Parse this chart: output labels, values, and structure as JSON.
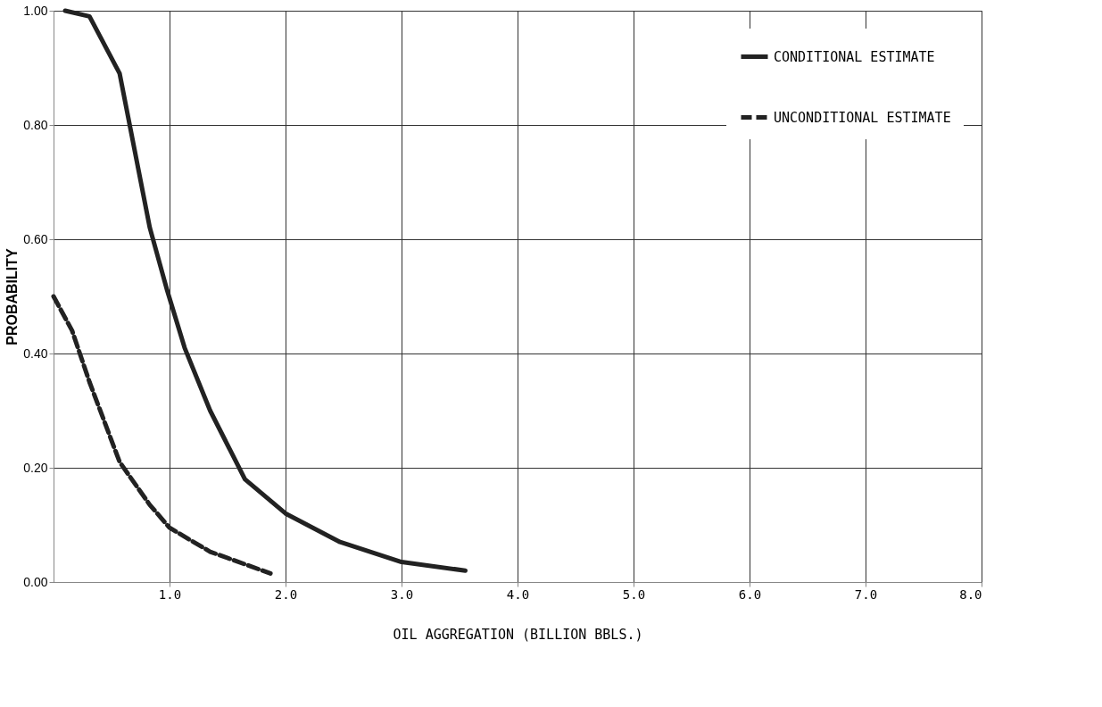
{
  "chart_data": {
    "type": "line",
    "xlabel": "OIL AGGREGATION (BILLION BBLS.)",
    "ylabel": "PROBABILITY",
    "xlim": [
      0,
      8
    ],
    "ylim": [
      0,
      1
    ],
    "xticks": [
      {
        "value": 1,
        "label": "1.0"
      },
      {
        "value": 2,
        "label": "2.0"
      },
      {
        "value": 3,
        "label": "3.0"
      },
      {
        "value": 4,
        "label": "4.0"
      },
      {
        "value": 5,
        "label": "5.0"
      },
      {
        "value": 6,
        "label": "6.0"
      },
      {
        "value": 7,
        "label": "7.0"
      },
      {
        "value": 8,
        "label": "8.0"
      }
    ],
    "yticks": [
      {
        "value": 0,
        "label": "0.00"
      },
      {
        "value": 0.2,
        "label": "0.20"
      },
      {
        "value": 0.4,
        "label": "0.40"
      },
      {
        "value": 0.6,
        "label": "0.60"
      },
      {
        "value": 0.8,
        "label": "0.80"
      },
      {
        "value": 1,
        "label": "1.00"
      }
    ],
    "grid": true,
    "legend": "top right",
    "marker": "none",
    "series": [
      {
        "name": "CONDITIONAL ESTIMATE",
        "color": "#222222",
        "line_style": "solid",
        "x": [
          0.1,
          0.31,
          0.57,
          0.83,
          0.98,
          1.13,
          1.35,
          1.65,
          2.0,
          2.47,
          3.0,
          3.55
        ],
        "values": [
          1.0,
          0.99,
          0.89,
          0.62,
          0.51,
          0.41,
          0.3,
          0.18,
          0.12,
          0.07,
          0.035,
          0.02
        ]
      },
      {
        "name": "UNCONDITIONAL ESTIMATE",
        "color": "#222222",
        "line_style": "dashed",
        "x": [
          0.0,
          0.16,
          0.31,
          0.57,
          0.83,
          1.0,
          1.35,
          1.87
        ],
        "values": [
          0.5,
          0.44,
          0.35,
          0.21,
          0.135,
          0.095,
          0.053,
          0.015
        ]
      }
    ]
  }
}
